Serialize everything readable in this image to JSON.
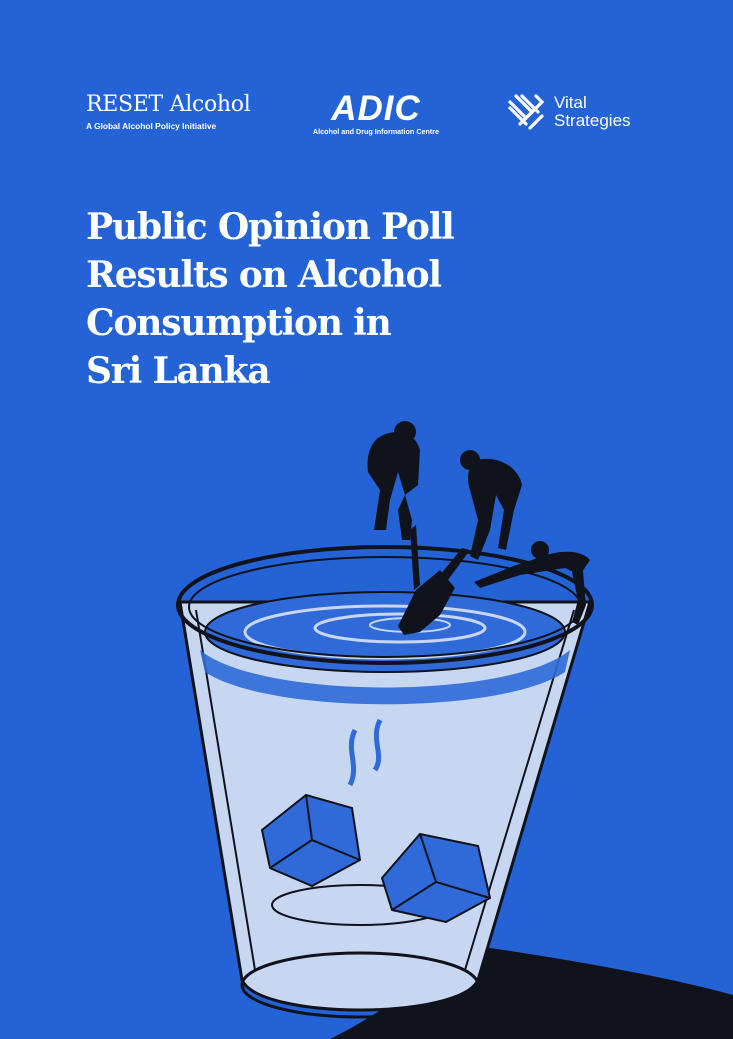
{
  "logos": {
    "reset": {
      "name": "RESET Alcohol",
      "tagline": "A Global Alcohol Policy Initiative"
    },
    "adic": {
      "name": "ADIC",
      "tagline": "Alcohol and Drug Information Centre"
    },
    "vital": {
      "line1": "Vital",
      "line2": "Strategies",
      "icon": "woven-x-icon"
    }
  },
  "title_lines": [
    "Public Opinion Poll",
    "Results on Alcohol",
    "Consumption in",
    "Sri Lanka"
  ],
  "colors": {
    "background": "#2463d6",
    "ink": "#11131c",
    "text": "#ffffff"
  }
}
